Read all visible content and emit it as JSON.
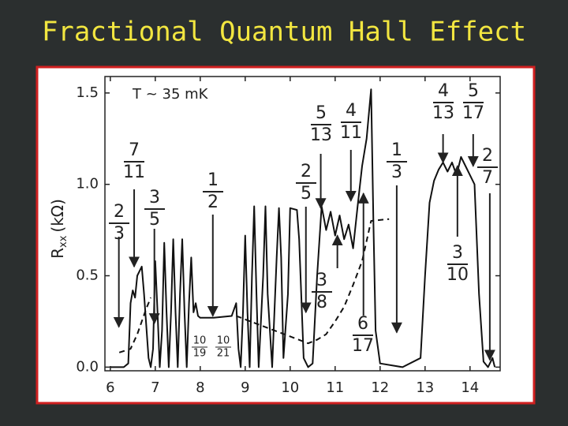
{
  "chart_data": {
    "type": "line",
    "title": "Fractional Quantum Hall Effect",
    "annotation": "T ~ 35 mK",
    "ylabel": {
      "main": "R",
      "sub": "xx",
      "unit": "(kΩ)"
    },
    "xlim": [
      5.88,
      14.67
    ],
    "ylim": [
      -0.02,
      1.59
    ],
    "xticks": [
      6,
      7,
      8,
      9,
      10,
      11,
      12,
      13,
      14
    ],
    "yticks": [
      {
        "value": 0,
        "label": "0.0"
      },
      0.5,
      {
        "value": 1,
        "label": "1.0"
      },
      1.5
    ],
    "series": [
      {
        "color": "#111111",
        "dashed": false,
        "x": [
          6.0,
          6.3,
          6.4,
          6.45,
          6.5,
          6.55,
          6.6,
          6.7,
          6.75,
          6.85,
          6.9,
          6.95,
          7.0,
          7.05,
          7.1,
          7.15,
          7.2,
          7.25,
          7.3,
          7.35,
          7.4,
          7.45,
          7.5,
          7.55,
          7.6,
          7.65,
          7.7,
          7.75,
          7.8,
          7.85,
          7.9,
          7.95,
          8.0,
          8.3,
          8.7,
          8.8,
          8.85,
          8.9,
          8.95,
          9.0,
          9.05,
          9.1,
          9.15,
          9.2,
          9.25,
          9.3,
          9.4,
          9.45,
          9.5,
          9.6,
          9.7,
          9.75,
          9.8,
          9.85,
          9.95,
          10.0,
          10.15,
          10.2,
          10.3,
          10.4,
          10.5,
          10.6,
          10.7,
          10.8,
          10.9,
          11.0,
          11.1,
          11.2,
          11.3,
          11.4,
          11.5,
          11.6,
          11.7,
          11.8,
          11.85,
          11.9,
          12.0,
          12.5,
          12.9,
          13.0,
          13.1,
          13.2,
          13.3,
          13.4,
          13.5,
          13.6,
          13.7,
          13.8,
          13.9,
          14.0,
          14.1,
          14.2,
          14.3,
          14.4,
          14.5,
          14.55
        ],
        "values": [
          0,
          0,
          0.02,
          0.35,
          0.42,
          0.38,
          0.5,
          0.55,
          0.4,
          0.05,
          0,
          0.1,
          0.58,
          0.3,
          0,
          0.2,
          0.68,
          0.3,
          0,
          0.3,
          0.7,
          0.3,
          0,
          0.4,
          0.7,
          0.3,
          0,
          0.35,
          0.6,
          0.3,
          0.35,
          0.28,
          0.27,
          0.27,
          0.28,
          0.35,
          0.1,
          0,
          0.3,
          0.72,
          0.3,
          0,
          0.5,
          0.88,
          0.4,
          0,
          0.5,
          0.88,
          0.4,
          0,
          0.6,
          0.87,
          0.6,
          0.05,
          0.4,
          0.87,
          0.86,
          0.7,
          0.05,
          0,
          0.02,
          0.5,
          0.88,
          0.75,
          0.85,
          0.72,
          0.83,
          0.7,
          0.78,
          0.65,
          0.88,
          1.1,
          1.25,
          1.52,
          0.8,
          0.2,
          0.02,
          0,
          0.05,
          0.5,
          0.9,
          1.02,
          1.08,
          1.12,
          1.07,
          1.12,
          1.05,
          1.15,
          1.1,
          1.05,
          1.0,
          0.4,
          0.03,
          0,
          0.05,
          0
        ]
      },
      {
        "color": "#111111",
        "dashed": true,
        "x": [
          6.2,
          6.45,
          6.6,
          6.8,
          6.9,
          7.9,
          8.8,
          10.4,
          10.6,
          10.8,
          11.0,
          11.2,
          11.4,
          11.6,
          11.8,
          12.2
        ],
        "values": [
          0.08,
          0.1,
          0.18,
          0.32,
          0.38,
          null,
          0.28,
          0.13,
          0.15,
          0.18,
          0.25,
          0.33,
          0.45,
          0.58,
          0.8,
          0.81
        ]
      }
    ],
    "fractions": [
      {
        "numerator": "2",
        "denominator": "3",
        "x": 6.19,
        "y": 0.22
      },
      {
        "numerator": "7",
        "denominator": "11",
        "x": 6.53,
        "y": 0.55
      },
      {
        "numerator": "3",
        "denominator": "5",
        "x": 6.98,
        "y": 0.24
      },
      {
        "numerator": "1",
        "denominator": "2",
        "x": 8.28,
        "y": 0.28
      },
      {
        "numerator": "2",
        "denominator": "5",
        "x": 10.35,
        "y": 0.3
      },
      {
        "numerator": "5",
        "denominator": "13",
        "x": 10.68,
        "y": 0.87
      },
      {
        "numerator": "4",
        "denominator": "11",
        "x": 11.35,
        "y": 0.91
      },
      {
        "numerator": "3",
        "denominator": "8",
        "x": 11.05,
        "y": 0.72
      },
      {
        "numerator": "6",
        "denominator": "17",
        "x": 11.63,
        "y": 0.95
      },
      {
        "numerator": "1",
        "denominator": "3",
        "x": 12.37,
        "y": 0.19
      },
      {
        "numerator": "4",
        "denominator": "13",
        "x": 13.4,
        "y": 1.12
      },
      {
        "numerator": "5",
        "denominator": "17",
        "x": 14.07,
        "y": 1.1
      },
      {
        "numerator": "2",
        "denominator": "7",
        "x": 14.44,
        "y": 0.04
      },
      {
        "numerator": "3",
        "denominator": "10",
        "x": 13.72,
        "y": 1.1
      },
      {
        "numerator": "10",
        "denominator": "19"
      },
      {
        "numerator": "10",
        "denominator": "21"
      }
    ]
  }
}
